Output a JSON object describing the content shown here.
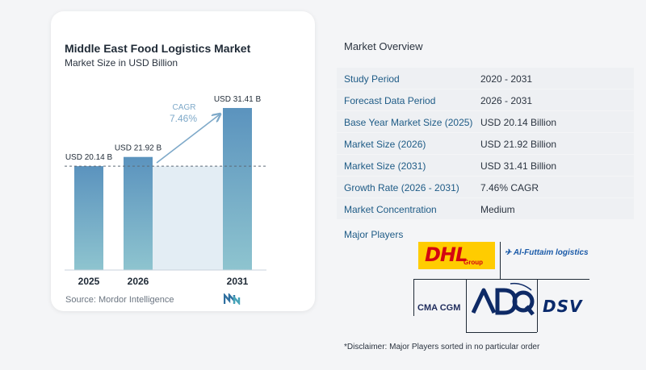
{
  "chart_data": {
    "type": "bar",
    "title": "Middle East Food Logistics Market",
    "subtitle": "Market Size in USD Billion",
    "categories": [
      "2025",
      "2026",
      "2031"
    ],
    "values": [
      20.14,
      21.92,
      31.41
    ],
    "value_labels": [
      "USD 20.14 B",
      "USD 21.92 B",
      "USD 31.41 B"
    ],
    "cagr_label": "CAGR",
    "cagr_value": "7.46%",
    "ylim": [
      0,
      35
    ],
    "colors": {
      "bar_top": "#5b93be",
      "bar_bottom": "#8ec4cf",
      "shade": "#e3edf4",
      "arrow": "#7ea9c9",
      "dashed": "#5d6b78"
    }
  },
  "source_text": "Source:  Mordor Intelligence",
  "overview": {
    "title": "Market Overview",
    "rows": [
      {
        "label": "Study Period",
        "value": "2020 - 2031"
      },
      {
        "label": "Forecast Data Period",
        "value": "2026 - 2031"
      },
      {
        "label": "Base Year Market Size (2025)",
        "value": "USD 20.14 Billion"
      },
      {
        "label": "Market Size (2026)",
        "value": "USD 21.92 Billion"
      },
      {
        "label": "Market Size (2031)",
        "value": "USD 31.41 Billion"
      },
      {
        "label": "Growth Rate (2026 - 2031)",
        "value": "7.46% CAGR"
      },
      {
        "label": "Market Concentration",
        "value": "Medium"
      }
    ],
    "players_title": "Major Players",
    "logos": {
      "dhl": "DHL",
      "dhl_sub": "Group",
      "alfuttaim": "Al-Futtaim logistics",
      "cma": "CMA CGM",
      "adq": "ADQ",
      "dsv": "DSV"
    },
    "disclaimer": "*Disclaimer: Major Players sorted in no particular order"
  }
}
